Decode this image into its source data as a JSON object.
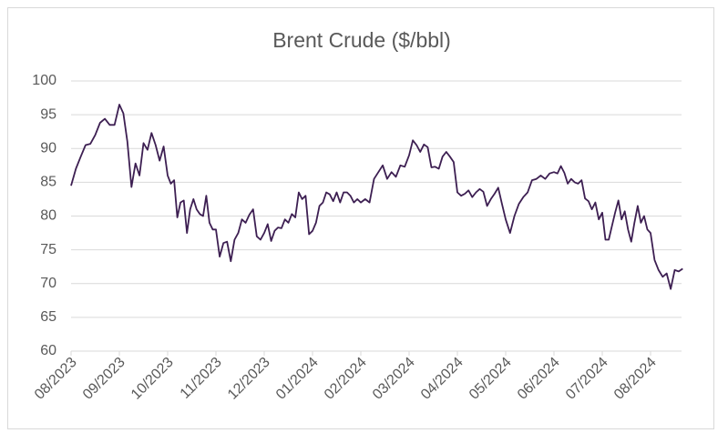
{
  "chart_data": {
    "type": "line",
    "title": "Brent Crude  ($/bbl)",
    "x": [
      "08/2023",
      "08/2023",
      "08/2023",
      "08/2023",
      "08/2023",
      "08/2023",
      "08/2023",
      "08/2023",
      "08/2023",
      "08/2023",
      "09/2023",
      "09/2023",
      "09/2023",
      "09/2023",
      "09/2023",
      "09/2023",
      "09/2023",
      "09/2023",
      "09/2023",
      "09/2023",
      "09/2023",
      "09/2023",
      "10/2023",
      "10/2023",
      "10/2023",
      "10/2023",
      "10/2023",
      "10/2023",
      "10/2023",
      "10/2023",
      "10/2023",
      "10/2023",
      "10/2023",
      "10/2023",
      "10/2023",
      "10/2023",
      "10/2023",
      "11/2023",
      "11/2023",
      "11/2023",
      "11/2023",
      "11/2023",
      "11/2023",
      "11/2023",
      "11/2023",
      "11/2023",
      "11/2023",
      "11/2023",
      "11/2023",
      "11/2023",
      "12/2023",
      "12/2023",
      "12/2023",
      "12/2023",
      "12/2023",
      "12/2023",
      "12/2023",
      "12/2023",
      "12/2023",
      "12/2023",
      "12/2023",
      "12/2023",
      "12/2023",
      "12/2023",
      "01/2024",
      "01/2024",
      "01/2024",
      "01/2024",
      "01/2024",
      "01/2024",
      "01/2024",
      "01/2024",
      "01/2024",
      "01/2024",
      "01/2024",
      "01/2024",
      "01/2024",
      "01/2024",
      "02/2024",
      "02/2024",
      "02/2024",
      "02/2024",
      "02/2024",
      "02/2024",
      "02/2024",
      "02/2024",
      "02/2024",
      "02/2024",
      "02/2024",
      "03/2024",
      "03/2024",
      "03/2024",
      "03/2024",
      "03/2024",
      "03/2024",
      "03/2024",
      "03/2024",
      "03/2024",
      "03/2024",
      "03/2024",
      "03/2024",
      "03/2024",
      "04/2024",
      "04/2024",
      "04/2024",
      "04/2024",
      "04/2024",
      "04/2024",
      "04/2024",
      "04/2024",
      "04/2024",
      "04/2024",
      "04/2024",
      "04/2024",
      "04/2024",
      "05/2024",
      "05/2024",
      "05/2024",
      "05/2024",
      "05/2024",
      "05/2024",
      "05/2024",
      "05/2024",
      "05/2024",
      "05/2024",
      "05/2024",
      "06/2024",
      "06/2024",
      "06/2024",
      "06/2024",
      "06/2024",
      "06/2024",
      "06/2024",
      "06/2024",
      "06/2024",
      "06/2024",
      "06/2024",
      "06/2024",
      "06/2024",
      "06/2024",
      "07/2024",
      "07/2024",
      "07/2024",
      "07/2024",
      "07/2024",
      "07/2024",
      "07/2024",
      "07/2024",
      "07/2024",
      "07/2024",
      "07/2024",
      "07/2024",
      "07/2024",
      "07/2024",
      "07/2024",
      "08/2024",
      "08/2024",
      "08/2024",
      "08/2024",
      "08/2024",
      "08/2024",
      "08/2024",
      "08/2024",
      "08/2024"
    ],
    "values": [
      84.5,
      87,
      88.8,
      90.5,
      90.7,
      92,
      93.8,
      94.4,
      93.5,
      93.5,
      96.5,
      95.2,
      91,
      84.3,
      87.8,
      86,
      90.8,
      89.8,
      92.3,
      90.5,
      88.2,
      90.3,
      86,
      84.8,
      85.3,
      79.8,
      82,
      82.3,
      77.5,
      81,
      82.5,
      81,
      80.3,
      80,
      83,
      79,
      78,
      78,
      74,
      76,
      76.2,
      73.3,
      76.5,
      77.5,
      79.5,
      79,
      80.2,
      81,
      77,
      76.5,
      77.5,
      78.8,
      76.3,
      77.8,
      78.3,
      78.2,
      79.5,
      79,
      80.3,
      79.8,
      83.5,
      82.5,
      83,
      77.3,
      77.8,
      79,
      81.5,
      82,
      83.5,
      83.2,
      82.2,
      83.5,
      82,
      83.5,
      83.5,
      83,
      82,
      82.5,
      82,
      82.5,
      82,
      85.5,
      86.5,
      87.5,
      85.5,
      86.5,
      85.8,
      87.5,
      87.3,
      89,
      91.2,
      90.5,
      89.5,
      90.6,
      90.2,
      87.2,
      87.3,
      87,
      88.8,
      89.5,
      88.8,
      88,
      83.5,
      83,
      83.3,
      83.8,
      82.8,
      83.5,
      84,
      83.6,
      81.5,
      82.5,
      83.3,
      84.2,
      81.8,
      79.5,
      77.5,
      80,
      81.8,
      82.8,
      83.5,
      85.3,
      85.5,
      86,
      85.5,
      86.3,
      86.5,
      86.3,
      87.4,
      86.4,
      84.8,
      85.5,
      85,
      84.8,
      85.3,
      82.6,
      82.2,
      81,
      82,
      79.5,
      80.5,
      76.5,
      76.5,
      78.5,
      80.5,
      82.3,
      79.5,
      80.7,
      78,
      76.2,
      79,
      81.5,
      79,
      80,
      78,
      77.5,
      73.5,
      72,
      71,
      71.5,
      69.2,
      72,
      71.8,
      72.2
    ],
    "color": "#3d1f52",
    "ylim": [
      60,
      100
    ],
    "yticks": [
      60,
      65,
      70,
      75,
      80,
      85,
      90,
      95,
      100
    ],
    "grid": true
  }
}
